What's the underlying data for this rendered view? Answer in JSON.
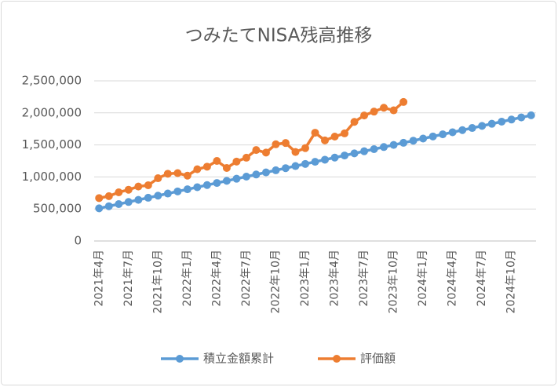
{
  "chart_data": {
    "type": "line",
    "title": "つみたてNISA残高推移",
    "categories": [
      "2021年4月",
      null,
      null,
      "2021年7月",
      null,
      null,
      "2021年10月",
      null,
      null,
      "2022年1月",
      null,
      null,
      "2022年4月",
      null,
      null,
      "2022年7月",
      null,
      null,
      "2022年10月",
      null,
      null,
      "2023年1月",
      null,
      null,
      "2023年4月",
      null,
      null,
      "2023年7月",
      null,
      null,
      "2023年10月",
      null,
      null,
      "2024年1月",
      null,
      null,
      "2024年4月",
      null,
      null,
      "2024年7月",
      null,
      null,
      "2024年10月",
      null,
      null
    ],
    "series": [
      {
        "name": "積立金額累計",
        "color": "#5b9bd5",
        "values": [
          510000,
          543000,
          576000,
          609000,
          642000,
          675000,
          708000,
          741000,
          774000,
          807000,
          840000,
          873000,
          906000,
          939000,
          972000,
          1005000,
          1038000,
          1071000,
          1104000,
          1137000,
          1170000,
          1203000,
          1236000,
          1269000,
          1302000,
          1335000,
          1368000,
          1401000,
          1434000,
          1467000,
          1500000,
          1533000,
          1566000,
          1599000,
          1632000,
          1665000,
          1698000,
          1731000,
          1764000,
          1797000,
          1830000,
          1863000,
          1896000,
          1929000,
          1962000
        ]
      },
      {
        "name": "評価額",
        "color": "#ed7d31",
        "values": [
          670000,
          700000,
          760000,
          800000,
          850000,
          870000,
          980000,
          1050000,
          1060000,
          1020000,
          1120000,
          1160000,
          1250000,
          1140000,
          1240000,
          1300000,
          1420000,
          1380000,
          1510000,
          1530000,
          1390000,
          1450000,
          1690000,
          1570000,
          1630000,
          1680000,
          1860000,
          1960000,
          2020000,
          2080000,
          2040000,
          2170000,
          null,
          null,
          null,
          null,
          null,
          null,
          null,
          null,
          null,
          null,
          null,
          null,
          null
        ]
      }
    ],
    "ylim": [
      0,
      2500000
    ],
    "yticks": [
      0,
      {
        "value": 500000,
        "label": "500,000"
      },
      {
        "value": 1000000,
        "label": "1,000,000"
      },
      {
        "value": 1500000,
        "label": "1,500,000"
      },
      {
        "value": 2000000,
        "label": "2,000,000"
      },
      {
        "value": 2500000,
        "label": "2,500,000"
      }
    ],
    "grid": true,
    "legend": "bottom"
  }
}
